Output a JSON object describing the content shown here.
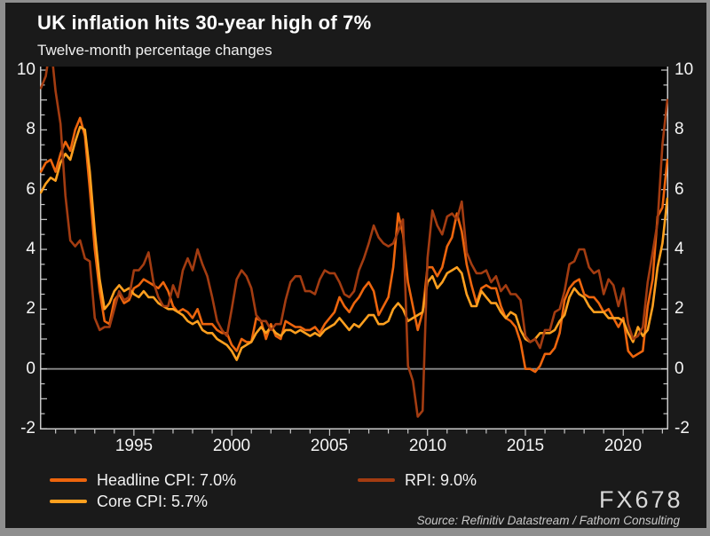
{
  "header": {
    "title": "UK inflation hits 30-year high of 7%",
    "subtitle": "Twelve-month percentage changes"
  },
  "footer": {
    "watermark": "FX678",
    "source": "Source: Refinitiv Datastream / Fathom Consulting"
  },
  "colors": {
    "panel_bg": "#1a1a1a",
    "plot_bg": "#000000",
    "frame": "#8f8f8f",
    "axis": "#c8c8c8",
    "zero_line": "#8a8a8a",
    "text": "#f5f5f5"
  },
  "chart_data": {
    "type": "line",
    "title": "UK inflation hits 30-year high of 7%",
    "subtitle": "Twelve-month percentage changes",
    "xlim": [
      1990.2,
      2022.3
    ],
    "ylim": [
      -2,
      10
    ],
    "grid": "none",
    "zero_line": true,
    "legend_position": "bottom-left",
    "y_tick_values": [
      10,
      8,
      6,
      4,
      2,
      0,
      -2
    ],
    "y_tick_labels": [
      "10",
      "8",
      "6",
      "4",
      "2",
      "0",
      "-2"
    ],
    "y_minor_step": 0.5,
    "x_tick_label_years": [
      1995,
      2000,
      2005,
      2010,
      2015,
      2020
    ],
    "x_tick_labels": [
      "1995",
      "2000",
      "2005",
      "2010",
      "2015",
      "2020"
    ],
    "x_minor_step": 1,
    "x_start": 1990.25,
    "x_step": 0.25,
    "series": [
      {
        "name": "Headline CPI",
        "legend_label": "Headline CPI: 7.0%",
        "latest_value": 7.0,
        "color": "#ed650d",
        "values": [
          6.6,
          6.9,
          7.0,
          6.6,
          7.2,
          7.6,
          7.3,
          8.0,
          8.4,
          7.8,
          6.0,
          4.0,
          2.6,
          1.6,
          1.5,
          2.3,
          2.5,
          2.2,
          2.3,
          2.7,
          2.8,
          3.0,
          2.9,
          2.8,
          2.7,
          2.9,
          2.6,
          2.1,
          1.9,
          2.0,
          1.9,
          1.7,
          2.0,
          1.5,
          1.5,
          1.5,
          1.3,
          1.2,
          1.2,
          0.8,
          0.6,
          1.0,
          0.9,
          0.9,
          1.7,
          1.6,
          1.0,
          1.5,
          1.1,
          1.0,
          1.6,
          1.5,
          1.4,
          1.4,
          1.3,
          1.3,
          1.4,
          1.2,
          1.5,
          1.7,
          1.9,
          2.4,
          2.1,
          1.9,
          2.2,
          2.4,
          2.7,
          2.9,
          2.6,
          1.8,
          2.1,
          2.4,
          3.4,
          5.2,
          4.5,
          2.9,
          2.1,
          1.3,
          1.9,
          3.4,
          3.4,
          3.1,
          3.4,
          4.1,
          4.4,
          5.2,
          4.6,
          3.5,
          2.8,
          2.2,
          2.7,
          2.8,
          2.7,
          2.7,
          2.1,
          1.7,
          1.6,
          1.4,
          0.9,
          0.0,
          0.0,
          -0.1,
          0.1,
          0.5,
          0.5,
          0.7,
          1.2,
          2.3,
          2.7,
          2.9,
          3.0,
          2.5,
          2.4,
          2.4,
          2.2,
          1.9,
          2.0,
          1.7,
          1.4,
          1.7,
          0.6,
          0.4,
          0.5,
          0.6,
          2.1,
          3.0,
          5.1,
          5.4,
          7.0
        ]
      },
      {
        "name": "Core CPI",
        "legend_label": "Core CPI: 5.7%",
        "latest_value": 5.7,
        "color": "#ffa01f",
        "values": [
          5.9,
          6.2,
          6.4,
          6.3,
          6.9,
          7.2,
          7.0,
          7.6,
          8.1,
          8.0,
          6.6,
          4.6,
          3.0,
          2.0,
          2.2,
          2.6,
          2.8,
          2.6,
          2.7,
          2.5,
          2.4,
          2.6,
          2.4,
          2.4,
          2.2,
          2.1,
          2.0,
          2.0,
          1.9,
          1.8,
          1.6,
          1.5,
          1.6,
          1.3,
          1.2,
          1.2,
          1.0,
          0.9,
          0.8,
          0.6,
          0.3,
          0.7,
          0.8,
          0.9,
          1.2,
          1.4,
          1.2,
          1.4,
          1.2,
          1.1,
          1.3,
          1.3,
          1.2,
          1.3,
          1.2,
          1.1,
          1.2,
          1.1,
          1.3,
          1.4,
          1.5,
          1.7,
          1.5,
          1.3,
          1.5,
          1.4,
          1.6,
          1.8,
          1.8,
          1.5,
          1.5,
          1.6,
          2.0,
          2.2,
          2.0,
          1.6,
          1.7,
          1.8,
          1.9,
          2.9,
          3.1,
          2.7,
          2.9,
          3.2,
          3.3,
          3.4,
          3.2,
          2.5,
          2.1,
          2.1,
          2.6,
          2.4,
          2.2,
          2.2,
          1.9,
          1.7,
          1.9,
          1.8,
          1.3,
          1.0,
          0.9,
          1.0,
          1.2,
          1.2,
          1.2,
          1.3,
          1.6,
          1.8,
          2.4,
          2.7,
          2.5,
          2.4,
          2.1,
          1.9,
          1.9,
          1.9,
          1.7,
          1.7,
          1.7,
          1.6,
          1.2,
          0.9,
          1.4,
          1.1,
          1.3,
          2.1,
          3.4,
          4.2,
          5.7
        ]
      },
      {
        "name": "RPI",
        "legend_label": "RPI: 9.0%",
        "latest_value": 9.0,
        "color": "#a33c11",
        "values": [
          9.4,
          9.8,
          10.9,
          9.3,
          8.2,
          5.8,
          4.3,
          4.1,
          4.3,
          3.7,
          3.6,
          1.7,
          1.3,
          1.4,
          1.4,
          2.0,
          2.6,
          2.3,
          2.4,
          3.3,
          3.3,
          3.5,
          3.9,
          2.9,
          2.4,
          2.1,
          2.1,
          2.8,
          2.4,
          3.3,
          3.7,
          3.3,
          4.0,
          3.5,
          3.1,
          2.4,
          1.6,
          1.3,
          1.1,
          2.0,
          3.0,
          3.3,
          3.1,
          2.7,
          1.8,
          1.6,
          1.6,
          1.3,
          1.5,
          1.5,
          2.3,
          2.9,
          3.1,
          3.1,
          2.6,
          2.6,
          2.5,
          3.0,
          3.3,
          3.2,
          3.2,
          2.9,
          2.5,
          2.4,
          2.6,
          3.3,
          3.7,
          4.2,
          4.8,
          4.4,
          4.2,
          4.1,
          4.2,
          4.6,
          5.0,
          0.1,
          -0.4,
          -1.6,
          -1.4,
          3.7,
          5.3,
          4.8,
          4.5,
          5.1,
          5.2,
          5.0,
          5.6,
          3.9,
          3.5,
          3.2,
          3.2,
          3.3,
          2.9,
          3.1,
          2.6,
          2.8,
          2.5,
          2.5,
          2.3,
          1.1,
          0.9,
          1.0,
          0.7,
          1.3,
          1.3,
          1.9,
          2.0,
          2.6,
          3.5,
          3.6,
          4.0,
          4.0,
          3.4,
          3.2,
          3.3,
          2.5,
          3.0,
          2.8,
          2.1,
          2.7,
          1.5,
          1.0,
          1.1,
          1.4,
          2.9,
          3.9,
          4.9,
          7.5,
          9.0
        ]
      }
    ]
  }
}
